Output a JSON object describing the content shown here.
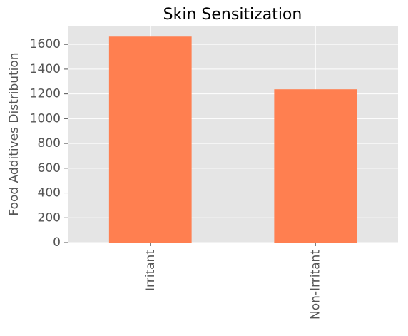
{
  "chart_data": {
    "type": "bar",
    "title": "Skin Sensitization",
    "y_label": "Food Additives Distribution",
    "categories": [
      "Irritant",
      "Non-Irritant"
    ],
    "values": [
      1663,
      1237
    ],
    "color": "#ff7f50",
    "ylim": [
      0,
      1745
    ],
    "yticks": [
      0,
      200,
      400,
      600,
      800,
      1000,
      1200,
      1400,
      1600
    ],
    "grid": true
  }
}
